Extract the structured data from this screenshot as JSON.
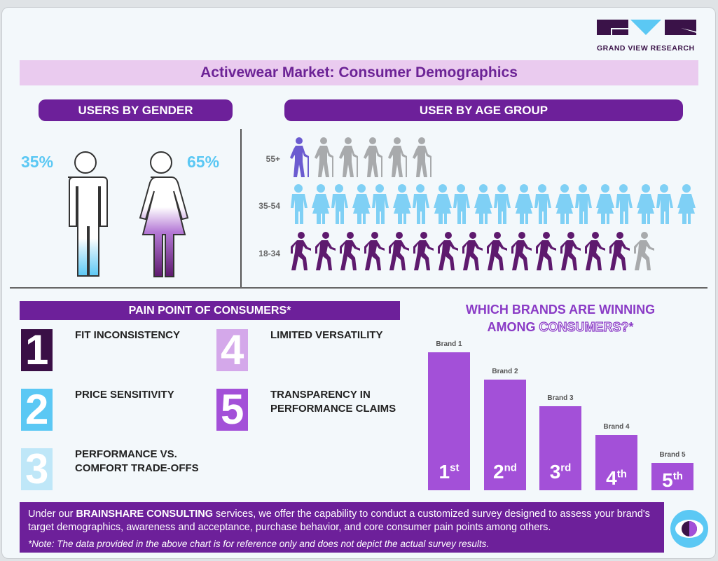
{
  "logo": {
    "text": "GRAND VIEW RESEARCH"
  },
  "title": "Activewear Market: Consumer Demographics",
  "gender": {
    "header": "USERS BY GENDER",
    "male_pct": "35%",
    "female_pct": "65%",
    "male_fill": 0.35,
    "female_fill": 0.65
  },
  "age": {
    "header": "USER BY AGE GROUP",
    "groups": [
      {
        "label": "55+",
        "highlighted": 1,
        "total": 6,
        "icon": "elderly-with-cane-icon",
        "color": "#6b5bd0"
      },
      {
        "label": "35-54",
        "highlighted": 20,
        "total": 20,
        "icon": "man-woman-icon",
        "color": "#7fd0f5"
      },
      {
        "label": "18-34",
        "highlighted": 14,
        "total": 15,
        "icon": "walking-person-icon",
        "color": "#5e1a6e"
      }
    ]
  },
  "pain": {
    "header": "PAIN POINT OF CONSUMERS*",
    "items": [
      {
        "num": "1",
        "text": "FIT INCONSISTENCY",
        "color": "#3a0f46"
      },
      {
        "num": "2",
        "text": "PRICE SENSITIVITY",
        "color": "#5bc8f4"
      },
      {
        "num": "3",
        "text": "PERFORMANCE VS. COMFORT TRADE-OFFS",
        "color": "#bfe7f8"
      },
      {
        "num": "4",
        "text": "LIMITED VERSATILITY",
        "color": "#d4a8ea"
      },
      {
        "num": "5",
        "text": "TRANSPARENCY IN PERFORMANCE CLAIMS",
        "color": "#a350d8"
      }
    ]
  },
  "brands": {
    "title_line1": "WHICH BRANDS ARE WINNING",
    "title_line2a": "AMONG ",
    "title_line2b": "CONSUMERS?",
    "title_line2c": "*"
  },
  "chart_data": {
    "type": "bar",
    "categories": [
      "Brand 1",
      "Brand 2",
      "Brand 3",
      "Brand 4",
      "Brand 5"
    ],
    "values": [
      100,
      80,
      61,
      40,
      20
    ],
    "rank_labels": [
      {
        "n": "1",
        "s": "st"
      },
      {
        "n": "2",
        "s": "nd"
      },
      {
        "n": "3",
        "s": "rd"
      },
      {
        "n": "4",
        "s": "th"
      },
      {
        "n": "5",
        "s": "th"
      }
    ],
    "color": "#a350d8"
  },
  "footer": {
    "pre": "Under our ",
    "brand": "BRAINSHARE CONSULTING",
    "post": " services, we offer the capability to conduct a customized survey designed to assess your brand's target demographics, awareness and acceptance, purchase behavior, and core consumer pain points among others.",
    "note": "*Note: The data provided in the above chart is for reference only and does not depict the actual survey results."
  }
}
